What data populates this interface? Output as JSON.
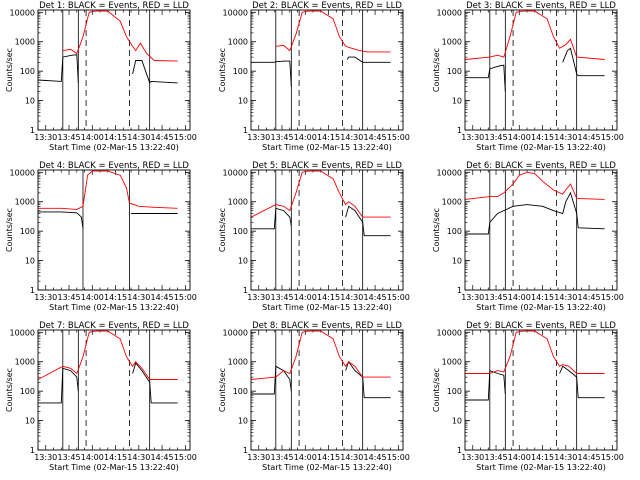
{
  "figure": {
    "xlabel": "Start Time (02-Mar-15 13:22:40)",
    "ylabel": "Counts/sec",
    "colors": {
      "events": "#000000",
      "lld": "#ff0000",
      "axes": "#000000",
      "background": "#ffffff"
    }
  },
  "chart_data": [
    {
      "type": "line",
      "title": "Det 1: BLACK = Events, RED = LLD",
      "xlabel": "Start Time (02-Mar-15 13:22:40)",
      "ylabel": "Counts/sec",
      "x_ticks": [
        "13:30",
        "13:45",
        "14:00",
        "14:15",
        "14:30",
        "14:45",
        "15:00"
      ],
      "y_ticks": [
        "1",
        "10",
        "100",
        "1000",
        "10000"
      ],
      "xlim": [
        "13:25",
        "15:03"
      ],
      "ylim": [
        1,
        12000
      ],
      "yscale": "log",
      "vlines_solid": [
        "13:41",
        "13:51",
        "14:37"
      ],
      "vlines_dashed": [
        "13:56",
        "14:24"
      ],
      "series": [
        {
          "name": "BLACK = Events",
          "color": "#000000",
          "x": [
            "13:25",
            "13:40",
            "13:41",
            "13:47",
            "13:50",
            "13:51",
            "14:20",
            "14:26",
            "14:28",
            "14:32",
            "14:37",
            "14:38",
            "14:55"
          ],
          "y": [
            50,
            45,
            300,
            350,
            360,
            40,
            null,
            80,
            230,
            230,
            40,
            45,
            40
          ]
        },
        {
          "name": "RED = LLD",
          "color": "#ff0000",
          "x": [
            "13:41",
            "13:46",
            "13:50",
            "13:54",
            "13:58",
            "14:02",
            "14:10",
            "14:18",
            "14:22",
            "14:26",
            "14:28",
            "14:31",
            "14:35",
            "14:40",
            "14:55"
          ],
          "y": [
            500,
            550,
            400,
            1500,
            10000,
            11000,
            11000,
            5000,
            1500,
            700,
            500,
            900,
            400,
            230,
            220
          ]
        }
      ]
    },
    {
      "type": "line",
      "title": "Det 2: BLACK = Events, RED = LLD",
      "xlabel": "Start Time (02-Mar-15 13:22:40)",
      "ylabel": "Counts/sec",
      "x_ticks": [
        "13:30",
        "13:45",
        "14:00",
        "14:15",
        "14:30",
        "14:45",
        "15:00"
      ],
      "y_ticks": [
        "1",
        "10",
        "100",
        "1000",
        "10000"
      ],
      "xlim": [
        "13:25",
        "15:03"
      ],
      "ylim": [
        1,
        12000
      ],
      "yscale": "log",
      "vlines_solid": [
        "13:41",
        "13:51",
        "14:37"
      ],
      "vlines_dashed": [
        "13:56",
        "14:24"
      ],
      "series": [
        {
          "name": "BLACK = Events",
          "color": "#000000",
          "x": [
            "13:25",
            "13:40",
            "13:41",
            "13:47",
            "13:50",
            "13:51",
            "14:20",
            "14:27",
            "14:28",
            "14:32",
            "14:37",
            "14:38",
            "14:55"
          ],
          "y": [
            200,
            200,
            210,
            220,
            220,
            30,
            null,
            250,
            300,
            300,
            200,
            200,
            200
          ]
        },
        {
          "name": "RED = LLD",
          "color": "#ff0000",
          "x": [
            "13:41",
            "13:46",
            "13:50",
            "13:54",
            "13:58",
            "14:02",
            "14:10",
            "14:18",
            "14:22",
            "14:26",
            "14:30",
            "14:35",
            "14:40",
            "14:55"
          ],
          "y": [
            700,
            750,
            500,
            1800,
            10000,
            11000,
            11000,
            6000,
            1500,
            700,
            600,
            500,
            450,
            450
          ]
        }
      ]
    },
    {
      "type": "line",
      "title": "Det 3: BLACK = Events, RED = LLD",
      "xlabel": "Start Time (02-Mar-15 13:22:40)",
      "ylabel": "Counts/sec",
      "x_ticks": [
        "13:30",
        "13:45",
        "14:00",
        "14:15",
        "14:30",
        "14:45",
        "15:00"
      ],
      "y_ticks": [
        "1",
        "10",
        "100",
        "1000",
        "10000"
      ],
      "xlim": [
        "13:25",
        "15:03"
      ],
      "ylim": [
        1,
        12000
      ],
      "yscale": "log",
      "vlines_solid": [
        "13:41",
        "13:51",
        "14:37"
      ],
      "vlines_dashed": [
        "13:56",
        "14:24"
      ],
      "series": [
        {
          "name": "BLACK = Events",
          "color": "#000000",
          "x": [
            "13:25",
            "13:40",
            "13:41",
            "13:47",
            "13:50",
            "13:51",
            "14:20",
            "14:28",
            "14:31",
            "14:33",
            "14:37",
            "14:38",
            "14:55"
          ],
          "y": [
            60,
            60,
            120,
            150,
            160,
            20,
            null,
            200,
            500,
            600,
            80,
            70,
            70
          ]
        },
        {
          "name": "RED = LLD",
          "color": "#ff0000",
          "x": [
            "13:25",
            "13:41",
            "13:46",
            "13:50",
            "13:54",
            "13:58",
            "14:02",
            "14:10",
            "14:18",
            "14:22",
            "14:26",
            "14:30",
            "14:33",
            "14:37",
            "14:55"
          ],
          "y": [
            250,
            300,
            350,
            300,
            1500,
            10000,
            11000,
            11000,
            6000,
            1500,
            600,
            800,
            1200,
            300,
            250
          ]
        }
      ]
    },
    {
      "type": "line",
      "title": "Det 4: BLACK = Events, RED = LLD",
      "xlabel": "Start Time (02-Mar-15 13:22:40)",
      "ylabel": "Counts/sec",
      "x_ticks": [
        "13:30",
        "13:45",
        "14:00",
        "14:15",
        "14:30",
        "14:45",
        "15:00"
      ],
      "y_ticks": [
        "1",
        "10",
        "100",
        "1000",
        "10000"
      ],
      "xlim": [
        "13:25",
        "15:03"
      ],
      "ylim": [
        1,
        12000
      ],
      "yscale": "log",
      "vlines_solid": [
        "13:54",
        "14:24"
      ],
      "vlines_dashed": [],
      "series": [
        {
          "name": "BLACK = Events",
          "color": "#000000",
          "x": [
            "13:25",
            "13:40",
            "13:50",
            "13:53",
            "13:54",
            "14:24",
            "14:25",
            "14:40",
            "14:55"
          ],
          "y": [
            450,
            450,
            420,
            300,
            120,
            null,
            400,
            400,
            400
          ]
        },
        {
          "name": "RED = LLD",
          "color": "#ff0000",
          "x": [
            "13:25",
            "13:40",
            "13:50",
            "13:54",
            "13:57",
            "14:00",
            "14:10",
            "14:18",
            "14:22",
            "14:24",
            "14:30",
            "14:40",
            "14:55"
          ],
          "y": [
            600,
            600,
            550,
            700,
            8000,
            11000,
            11000,
            8000,
            3000,
            900,
            700,
            650,
            600
          ]
        }
      ]
    },
    {
      "type": "line",
      "title": "Det 5: BLACK = Events, RED = LLD",
      "xlabel": "Start Time (02-Mar-15 13:22:40)",
      "ylabel": "Counts/sec",
      "x_ticks": [
        "13:30",
        "13:45",
        "14:00",
        "14:15",
        "14:30",
        "14:45",
        "15:00"
      ],
      "y_ticks": [
        "1",
        "10",
        "100",
        "1000",
        "10000"
      ],
      "xlim": [
        "13:25",
        "15:03"
      ],
      "ylim": [
        1,
        12000
      ],
      "yscale": "log",
      "vlines_solid": [
        "13:41",
        "13:51",
        "14:37"
      ],
      "vlines_dashed": [
        "13:56",
        "14:24"
      ],
      "series": [
        {
          "name": "BLACK = Events",
          "color": "#000000",
          "x": [
            "13:25",
            "13:40",
            "13:41",
            "13:46",
            "13:50",
            "13:51",
            "14:20",
            "14:26",
            "14:28",
            "14:32",
            "14:37",
            "14:38",
            "14:55"
          ],
          "y": [
            120,
            120,
            600,
            500,
            300,
            150,
            null,
            300,
            700,
            500,
            200,
            70,
            70
          ]
        },
        {
          "name": "RED = LLD",
          "color": "#ff0000",
          "x": [
            "13:25",
            "13:41",
            "13:46",
            "13:50",
            "13:54",
            "13:58",
            "14:02",
            "14:10",
            "14:18",
            "14:22",
            "14:26",
            "14:28",
            "14:32",
            "14:37",
            "14:55"
          ],
          "y": [
            300,
            800,
            700,
            500,
            2000,
            10000,
            11000,
            11000,
            6000,
            2000,
            800,
            1000,
            700,
            300,
            300
          ]
        }
      ]
    },
    {
      "type": "line",
      "title": "Det 6: BLACK = Events, RED = LLD",
      "xlabel": "Start Time (02-Mar-15 13:22:40)",
      "ylabel": "Counts/sec",
      "x_ticks": [
        "13:30",
        "13:45",
        "14:00",
        "14:15",
        "14:30",
        "14:45",
        "15:00"
      ],
      "y_ticks": [
        "1",
        "10",
        "100",
        "1000",
        "10000"
      ],
      "xlim": [
        "13:25",
        "15:03"
      ],
      "ylim": [
        1,
        12000
      ],
      "yscale": "log",
      "vlines_solid": [
        "13:41",
        "13:51",
        "14:37"
      ],
      "vlines_dashed": [
        "13:56",
        "14:24"
      ],
      "series": [
        {
          "name": "BLACK = Events",
          "color": "#000000",
          "x": [
            "13:25",
            "13:40",
            "13:41",
            "13:46",
            "13:50",
            "13:56",
            "14:05",
            "14:15",
            "14:22",
            "14:28",
            "14:30",
            "14:33",
            "14:37",
            "14:38",
            "14:55"
          ],
          "y": [
            80,
            80,
            200,
            400,
            500,
            700,
            800,
            700,
            500,
            400,
            1000,
            2000,
            400,
            130,
            120
          ]
        },
        {
          "name": "RED = LLD",
          "color": "#ff0000",
          "x": [
            "13:25",
            "13:41",
            "13:46",
            "13:50",
            "13:56",
            "14:00",
            "14:05",
            "14:10",
            "14:15",
            "14:22",
            "14:28",
            "14:30",
            "14:33",
            "14:37",
            "14:55"
          ],
          "y": [
            1200,
            1500,
            1500,
            2000,
            4000,
            8000,
            10000,
            9000,
            5000,
            2500,
            1800,
            2500,
            4000,
            1300,
            1200
          ]
        }
      ]
    },
    {
      "type": "line",
      "title": "Det 7: BLACK = Events, RED = LLD",
      "xlabel": "Start Time (02-Mar-15 13:22:40)",
      "ylabel": "Counts/sec",
      "x_ticks": [
        "13:30",
        "13:45",
        "14:00",
        "14:15",
        "14:30",
        "14:45",
        "15:00"
      ],
      "y_ticks": [
        "1",
        "10",
        "100",
        "1000",
        "10000"
      ],
      "xlim": [
        "13:25",
        "15:03"
      ],
      "ylim": [
        1,
        12000
      ],
      "yscale": "log",
      "vlines_solid": [
        "13:41",
        "13:51",
        "14:37"
      ],
      "vlines_dashed": [
        "13:56",
        "14:24"
      ],
      "series": [
        {
          "name": "BLACK = Events",
          "color": "#000000",
          "x": [
            "13:25",
            "13:40",
            "13:41",
            "13:46",
            "13:50",
            "13:51",
            "14:20",
            "14:26",
            "14:28",
            "14:32",
            "14:37",
            "14:38",
            "14:55"
          ],
          "y": [
            40,
            40,
            600,
            500,
            300,
            100,
            null,
            400,
            900,
            500,
            200,
            40,
            40
          ]
        },
        {
          "name": "RED = LLD",
          "color": "#ff0000",
          "x": [
            "13:25",
            "13:41",
            "13:46",
            "13:50",
            "13:54",
            "13:58",
            "14:02",
            "14:10",
            "14:18",
            "14:22",
            "14:26",
            "14:28",
            "14:32",
            "14:37",
            "14:55"
          ],
          "y": [
            250,
            700,
            600,
            400,
            1500,
            10000,
            11000,
            11000,
            6000,
            1500,
            700,
            1000,
            600,
            250,
            250
          ]
        }
      ]
    },
    {
      "type": "line",
      "title": "Det 8: BLACK = Events, RED = LLD",
      "xlabel": "Start Time (02-Mar-15 13:22:40)",
      "ylabel": "Counts/sec",
      "x_ticks": [
        "13:30",
        "13:45",
        "14:00",
        "14:15",
        "14:30",
        "14:45",
        "15:00"
      ],
      "y_ticks": [
        "1",
        "10",
        "100",
        "1000",
        "10000"
      ],
      "xlim": [
        "13:25",
        "15:03"
      ],
      "ylim": [
        1,
        12000
      ],
      "yscale": "log",
      "vlines_solid": [
        "13:41",
        "13:51",
        "14:37"
      ],
      "vlines_dashed": [
        "13:56",
        "14:24"
      ],
      "series": [
        {
          "name": "BLACK = Events",
          "color": "#000000",
          "x": [
            "13:25",
            "13:40",
            "13:41",
            "13:46",
            "13:50",
            "13:51",
            "14:20",
            "14:26",
            "14:28",
            "14:32",
            "14:37",
            "14:38",
            "14:55"
          ],
          "y": [
            80,
            80,
            700,
            500,
            250,
            100,
            null,
            500,
            1000,
            500,
            300,
            60,
            60
          ]
        },
        {
          "name": "RED = LLD",
          "color": "#ff0000",
          "x": [
            "13:25",
            "13:41",
            "13:46",
            "13:50",
            "13:54",
            "13:58",
            "14:02",
            "14:10",
            "14:18",
            "14:22",
            "14:26",
            "14:28",
            "14:32",
            "14:37",
            "14:55"
          ],
          "y": [
            250,
            300,
            500,
            400,
            1500,
            10000,
            11000,
            11000,
            6000,
            1500,
            700,
            1000,
            700,
            300,
            300
          ]
        }
      ]
    },
    {
      "type": "line",
      "title": "Det 9: BLACK = Events, RED = LLD",
      "xlabel": "Start Time (02-Mar-15 13:22:40)",
      "ylabel": "Counts/sec",
      "x_ticks": [
        "13:30",
        "13:45",
        "14:00",
        "14:15",
        "14:30",
        "14:45",
        "15:00"
      ],
      "y_ticks": [
        "1",
        "10",
        "100",
        "1000",
        "10000"
      ],
      "xlim": [
        "13:25",
        "15:03"
      ],
      "ylim": [
        1,
        12000
      ],
      "yscale": "log",
      "vlines_solid": [
        "13:41",
        "13:51",
        "14:37"
      ],
      "vlines_dashed": [
        "13:56",
        "14:24"
      ],
      "series": [
        {
          "name": "BLACK = Events",
          "color": "#000000",
          "x": [
            "13:25",
            "13:40",
            "13:41",
            "13:46",
            "13:50",
            "13:51",
            "14:20",
            "14:26",
            "14:28",
            "14:32",
            "14:37",
            "14:38",
            "14:55"
          ],
          "y": [
            50,
            50,
            500,
            400,
            350,
            80,
            null,
            400,
            700,
            500,
            300,
            60,
            60
          ]
        },
        {
          "name": "RED = LLD",
          "color": "#ff0000",
          "x": [
            "13:25",
            "13:41",
            "13:46",
            "13:50",
            "13:54",
            "13:58",
            "14:02",
            "14:10",
            "14:18",
            "14:22",
            "14:26",
            "14:28",
            "14:32",
            "14:37",
            "14:55"
          ],
          "y": [
            400,
            400,
            500,
            450,
            1500,
            10000,
            11000,
            11000,
            6000,
            1500,
            700,
            800,
            700,
            400,
            400
          ]
        }
      ]
    }
  ]
}
